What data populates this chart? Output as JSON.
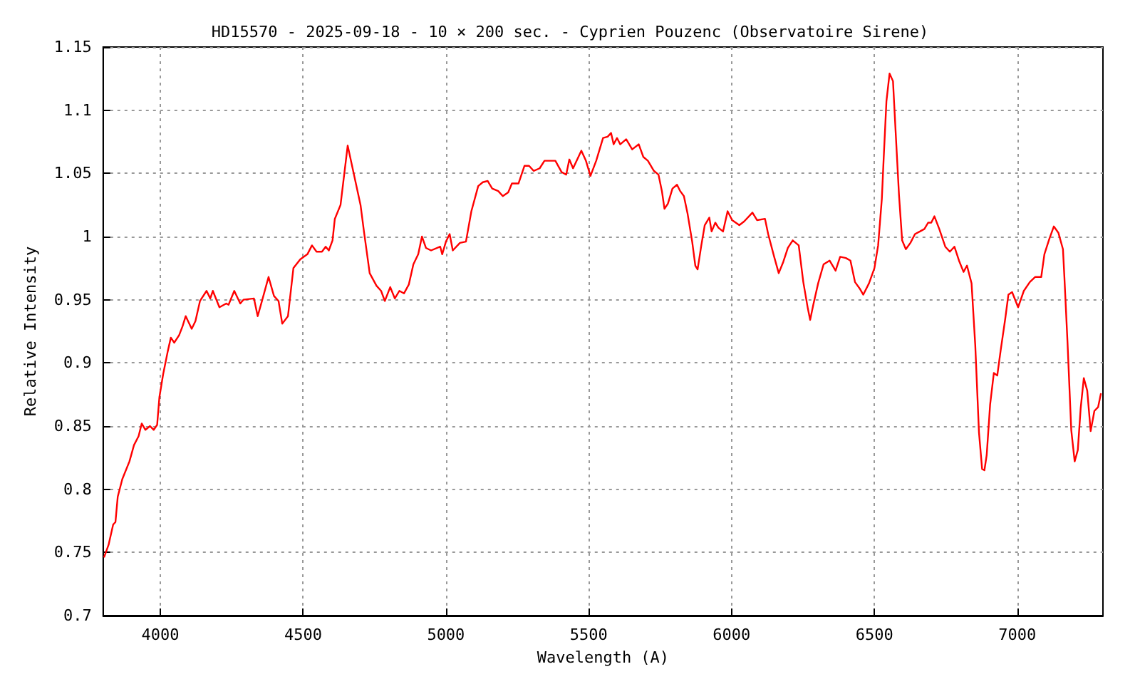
{
  "chart_data": {
    "type": "line",
    "title": "HD15570 - 2025-09-18 - 10 × 200 sec. - Cyprien Pouzenc (Observatoire Sirene)",
    "xlabel": "Wavelength (A)",
    "ylabel": "Relative Intensity",
    "xlim": [
      3800,
      7300
    ],
    "xticks": [
      4000,
      4500,
      5000,
      5500,
      6000,
      6500,
      7000
    ],
    "ylim": [
      0.7,
      1.15
    ],
    "yticks": [
      0.7,
      0.75,
      0.8,
      0.85,
      0.9,
      0.95,
      1,
      1.05,
      1.1,
      1.15
    ],
    "grid": true,
    "marker": "none",
    "line_style": "solid",
    "series": [
      {
        "color": "#ff0000",
        "x": [
          3803,
          3819,
          3835,
          3843,
          3851,
          3867,
          3892,
          3908,
          3924,
          3935,
          3948,
          3964,
          3977,
          3989,
          3997,
          4010,
          4026,
          4037,
          4049,
          4066,
          4078,
          4089,
          4110,
          4123,
          4139,
          4162,
          4175,
          4184,
          4207,
          4231,
          4239,
          4259,
          4280,
          4291,
          4328,
          4341,
          4356,
          4379,
          4398,
          4414,
          4427,
          4447,
          4466,
          4490,
          4515,
          4531,
          4547,
          4566,
          4579,
          4590,
          4603,
          4611,
          4631,
          4656,
          4701,
          4713,
          4733,
          4757,
          4773,
          4786,
          4805,
          4821,
          4837,
          4853,
          4870,
          4886,
          4903,
          4916,
          4930,
          4948,
          4980,
          4987,
          5000,
          5013,
          5024,
          5049,
          5070,
          5089,
          5113,
          5129,
          5146,
          5162,
          5183,
          5199,
          5218,
          5231,
          5254,
          5275,
          5291,
          5307,
          5328,
          5345,
          5372,
          5383,
          5405,
          5421,
          5432,
          5445,
          5474,
          5490,
          5506,
          5526,
          5550,
          5566,
          5578,
          5587,
          5599,
          5610,
          5631,
          5652,
          5675,
          5691,
          5707,
          5728,
          5744,
          5756,
          5765,
          5777,
          5793,
          5809,
          5820,
          5833,
          5846,
          5862,
          5873,
          5881,
          5894,
          5906,
          5922,
          5930,
          5943,
          5954,
          5970,
          5986,
          6002,
          6027,
          6044,
          6073,
          6089,
          6117,
          6128,
          6149,
          6165,
          6181,
          6197,
          6214,
          6235,
          6251,
          6267,
          6275,
          6286,
          6303,
          6322,
          6343,
          6364,
          6380,
          6400,
          6416,
          6432,
          6448,
          6461,
          6481,
          6500,
          6513,
          6526,
          6532,
          6542,
          6553,
          6565,
          6574,
          6586,
          6597,
          6610,
          6626,
          6642,
          6659,
          6675,
          6688,
          6699,
          6710,
          6727,
          6748,
          6764,
          6780,
          6796,
          6812,
          6824,
          6840,
          6853,
          6866,
          6877,
          6885,
          6893,
          6905,
          6918,
          6930,
          6942,
          6958,
          6969,
          6982,
          7003,
          7023,
          7044,
          7063,
          7084,
          7095,
          7112,
          7128,
          7144,
          7160,
          7165,
          7176,
          7189,
          7201,
          7212,
          7222,
          7233,
          7245,
          7257,
          7270,
          7283,
          7293
        ],
        "values": [
          0.746,
          0.756,
          0.772,
          0.774,
          0.794,
          0.808,
          0.822,
          0.835,
          0.842,
          0.852,
          0.847,
          0.85,
          0.847,
          0.851,
          0.873,
          0.891,
          0.909,
          0.92,
          0.916,
          0.922,
          0.929,
          0.937,
          0.927,
          0.933,
          0.949,
          0.957,
          0.951,
          0.957,
          0.944,
          0.947,
          0.946,
          0.957,
          0.947,
          0.95,
          0.951,
          0.937,
          0.949,
          0.968,
          0.953,
          0.949,
          0.931,
          0.937,
          0.975,
          0.982,
          0.986,
          0.993,
          0.988,
          0.988,
          0.992,
          0.989,
          0.997,
          1.014,
          1.025,
          1.072,
          1.025,
          1.004,
          0.971,
          0.961,
          0.957,
          0.949,
          0.96,
          0.951,
          0.957,
          0.955,
          0.962,
          0.978,
          0.986,
          1.0,
          0.991,
          0.989,
          0.992,
          0.986,
          0.996,
          1.002,
          0.989,
          0.995,
          0.996,
          1.02,
          1.04,
          1.043,
          1.044,
          1.038,
          1.036,
          1.032,
          1.035,
          1.042,
          1.042,
          1.056,
          1.056,
          1.052,
          1.054,
          1.06,
          1.06,
          1.06,
          1.051,
          1.049,
          1.061,
          1.054,
          1.068,
          1.06,
          1.048,
          1.06,
          1.078,
          1.079,
          1.082,
          1.073,
          1.078,
          1.073,
          1.077,
          1.069,
          1.073,
          1.063,
          1.06,
          1.052,
          1.049,
          1.036,
          1.022,
          1.026,
          1.038,
          1.041,
          1.036,
          1.032,
          1.018,
          0.996,
          0.977,
          0.974,
          0.993,
          1.009,
          1.015,
          1.004,
          1.011,
          1.007,
          1.004,
          1.02,
          1.013,
          1.009,
          1.012,
          1.019,
          1.013,
          1.014,
          1.002,
          0.984,
          0.971,
          0.98,
          0.991,
          0.997,
          0.993,
          0.964,
          0.943,
          0.934,
          0.946,
          0.963,
          0.978,
          0.981,
          0.973,
          0.984,
          0.983,
          0.981,
          0.964,
          0.959,
          0.954,
          0.963,
          0.975,
          0.993,
          1.03,
          1.06,
          1.107,
          1.129,
          1.123,
          1.084,
          1.033,
          0.997,
          0.99,
          0.995,
          1.002,
          1.004,
          1.006,
          1.011,
          1.011,
          1.016,
          1.006,
          0.992,
          0.988,
          0.992,
          0.981,
          0.972,
          0.977,
          0.963,
          0.914,
          0.845,
          0.816,
          0.815,
          0.827,
          0.867,
          0.892,
          0.89,
          0.91,
          0.935,
          0.954,
          0.956,
          0.944,
          0.957,
          0.964,
          0.968,
          0.968,
          0.986,
          0.998,
          1.008,
          1.003,
          0.99,
          0.968,
          0.916,
          0.847,
          0.822,
          0.831,
          0.864,
          0.888,
          0.878,
          0.846,
          0.862,
          0.865,
          0.876
        ]
      }
    ]
  }
}
